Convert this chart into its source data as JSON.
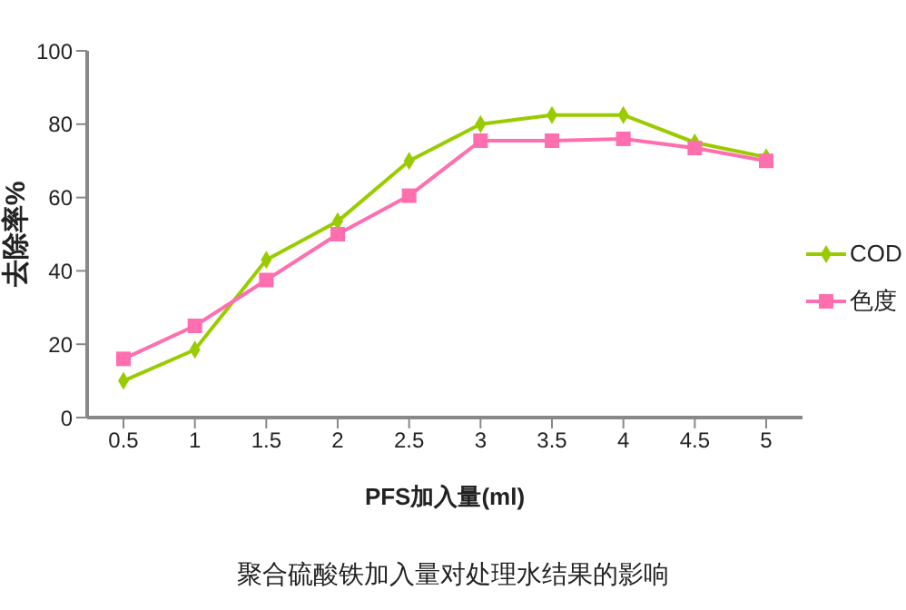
{
  "chart_data": {
    "type": "line",
    "title": "聚合硫酸铁加入量对处理水结果的影响",
    "xlabel": "PFS加入量(ml)",
    "ylabel": "去除率%",
    "categories": [
      "0.5",
      "1",
      "1.5",
      "2",
      "2.5",
      "3",
      "3.5",
      "4",
      "4.5",
      "5"
    ],
    "series": [
      {
        "name": "COD",
        "color": "#99cc00",
        "marker": "diamond",
        "values": [
          10,
          18.5,
          43,
          53.5,
          70,
          80,
          82.5,
          82.5,
          75,
          71
        ]
      },
      {
        "name": "色度",
        "color": "#ff6fb0",
        "marker": "square",
        "values": [
          16,
          25,
          37.5,
          50,
          60.5,
          75.5,
          75.5,
          76,
          73.5,
          70
        ]
      }
    ],
    "ylim": [
      0,
      100
    ],
    "yticks": [
      0,
      20,
      40,
      60,
      80,
      100
    ],
    "grid": false,
    "legend": "right",
    "line_style": "solid"
  }
}
